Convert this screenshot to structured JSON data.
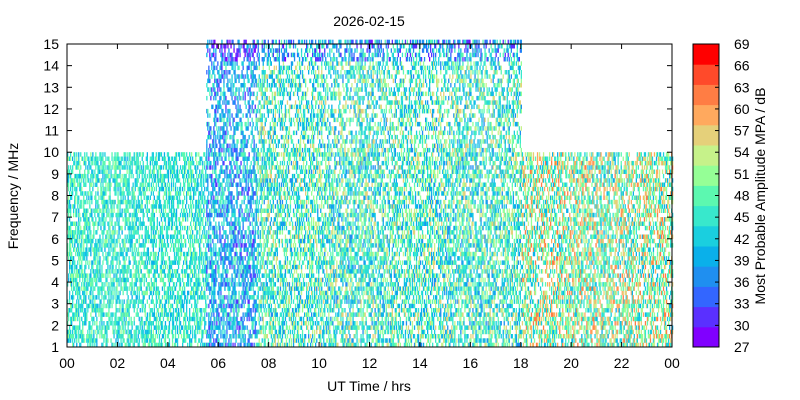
{
  "chart_data": {
    "type": "heatmap",
    "title": "2026-02-15",
    "xlabel": "UT Time / hrs",
    "ylabel": "Frequency / MHz",
    "xlim": [
      0,
      24
    ],
    "ylim": [
      1,
      15
    ],
    "x_ticks": [
      "00",
      "02",
      "04",
      "06",
      "08",
      "10",
      "12",
      "14",
      "16",
      "18",
      "20",
      "22",
      "00"
    ],
    "y_ticks": [
      "1",
      "2",
      "3",
      "4",
      "5",
      "6",
      "7",
      "8",
      "9",
      "10",
      "11",
      "12",
      "13",
      "14",
      "15"
    ],
    "colorbar": {
      "label": "Most Probable Amplitude MPA / dB",
      "min": 27,
      "max": 69,
      "step": 3,
      "ticks": [
        "27",
        "30",
        "33",
        "36",
        "39",
        "42",
        "45",
        "48",
        "51",
        "54",
        "57",
        "60",
        "63",
        "66",
        "69"
      ],
      "colors": [
        "#8000ff",
        "#5a30ff",
        "#3366ff",
        "#1f8ff0",
        "#0ab0ea",
        "#1acfdf",
        "#38e8cc",
        "#5cf8b0",
        "#95ff96",
        "#c6f28a",
        "#e5d07a",
        "#ffa95e",
        "#ff7d44",
        "#ff4a2a",
        "#ff0000"
      ]
    },
    "bands": [
      {
        "from_hr": 0,
        "to_hr": 5.5,
        "freq_max_mhz": 9.8,
        "typical_dB": [
          39,
          51
        ]
      },
      {
        "from_hr": 5.5,
        "to_hr": 7.5,
        "freq_max_mhz": 15,
        "typical_dB": [
          30,
          48
        ]
      },
      {
        "from_hr": 7.5,
        "to_hr": 18,
        "freq_max_mhz": 15,
        "typical_dB": [
          36,
          57
        ]
      },
      {
        "from_hr": 18,
        "to_hr": 24,
        "freq_max_mhz": 9.8,
        "typical_dB": [
          39,
          63
        ]
      }
    ],
    "grid": false
  }
}
